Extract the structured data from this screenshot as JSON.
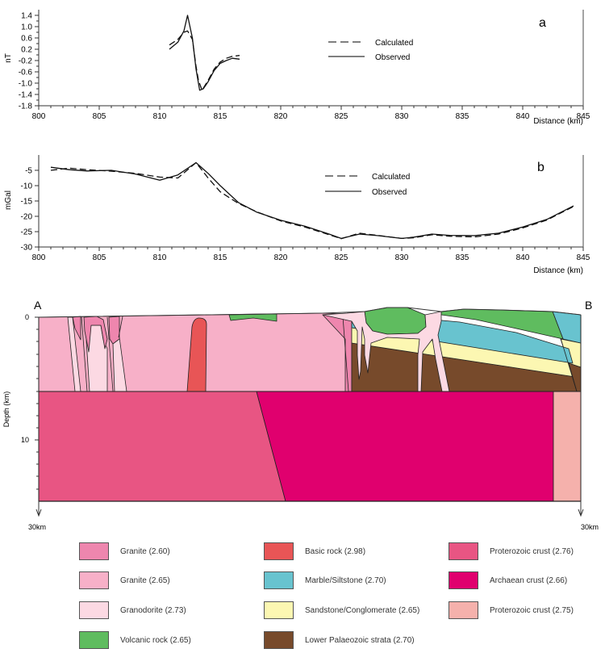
{
  "chart_data": [
    {
      "id": "a",
      "type": "line",
      "panel_label": "a",
      "xlabel": "Distance (km)",
      "ylabel": "nT",
      "xlim": [
        800,
        845
      ],
      "ylim": [
        -1.8,
        1.6
      ],
      "xticks": [
        800,
        805,
        810,
        815,
        820,
        825,
        830,
        835,
        840,
        845
      ],
      "yticks": [
        1.4,
        1.0,
        0.6,
        0.2,
        -0.2,
        -0.6,
        -1.0,
        -1.4,
        -1.8
      ],
      "ytick_labels": [
        "1.4",
        "1.0",
        "0.6",
        "0.2",
        "-0.2",
        "-0.6",
        "-1.0",
        "-1.4",
        "-1.8"
      ],
      "legend_position": "center-right",
      "series": [
        {
          "name": "Calculated",
          "style": "dashed",
          "x": [
            810.8,
            811.5,
            812.0,
            812.3,
            812.7,
            813.0,
            813.2,
            813.5,
            814.0,
            814.5,
            815.0,
            815.5,
            816.0,
            816.6
          ],
          "y": [
            0.35,
            0.55,
            0.8,
            0.85,
            0.55,
            -0.4,
            -0.9,
            -1.25,
            -0.9,
            -0.5,
            -0.25,
            -0.12,
            -0.05,
            -0.02
          ]
        },
        {
          "name": "Observed",
          "style": "solid",
          "x": [
            810.8,
            811.5,
            812.0,
            812.3,
            812.7,
            813.0,
            813.3,
            813.6,
            814.0,
            814.5,
            815.0,
            815.5,
            816.0,
            816.6
          ],
          "y": [
            0.2,
            0.45,
            0.85,
            1.4,
            0.6,
            -0.5,
            -1.25,
            -1.2,
            -0.95,
            -0.55,
            -0.3,
            -0.2,
            -0.12,
            -0.15
          ]
        }
      ]
    },
    {
      "id": "b",
      "type": "line",
      "panel_label": "b",
      "xlabel": "Distance (km)",
      "ylabel": "mGal",
      "xlim": [
        800,
        845
      ],
      "ylim": [
        -30,
        0
      ],
      "xticks": [
        800,
        805,
        810,
        815,
        820,
        825,
        830,
        835,
        840,
        845
      ],
      "yticks": [
        -5,
        -10,
        -15,
        -20,
        -25,
        -30
      ],
      "ytick_labels": [
        "-5",
        "-10",
        "-15",
        "-20",
        "-25",
        "-30"
      ],
      "legend_position": "top-right",
      "series": [
        {
          "name": "Calculated",
          "style": "dashed",
          "x": [
            801,
            802.5,
            804,
            806,
            808,
            810,
            811.5,
            813,
            814,
            815,
            816.5,
            818,
            820,
            822,
            824,
            825,
            826.5,
            828,
            830,
            831,
            832.5,
            834,
            836,
            838,
            840,
            842,
            844.2
          ],
          "y": [
            -5.0,
            -4.3,
            -4.8,
            -5.3,
            -6.0,
            -7.2,
            -7.5,
            -2.5,
            -7.5,
            -12.0,
            -15.8,
            -18.5,
            -21.5,
            -23.5,
            -26.0,
            -27.3,
            -25.5,
            -26.2,
            -27.2,
            -27.0,
            -26.0,
            -26.5,
            -26.7,
            -25.8,
            -23.8,
            -21.2,
            -16.8
          ]
        },
        {
          "name": "Observed",
          "style": "solid",
          "x": [
            801,
            802.5,
            804,
            806,
            808,
            810,
            811.5,
            813,
            814,
            815,
            816.5,
            818,
            820,
            822,
            824,
            825,
            826.5,
            828,
            830,
            831,
            832.5,
            834,
            836,
            838,
            840,
            842,
            844.2
          ],
          "y": [
            -4.0,
            -4.8,
            -5.2,
            -5.0,
            -6.2,
            -8.2,
            -6.5,
            -2.5,
            -6.0,
            -10.0,
            -15.5,
            -18.6,
            -21.3,
            -23.2,
            -25.8,
            -27.2,
            -25.8,
            -26.3,
            -27.2,
            -26.8,
            -25.8,
            -26.2,
            -26.3,
            -25.5,
            -23.5,
            -21.0,
            -16.6
          ]
        }
      ]
    }
  ],
  "cross_section": {
    "left_label": "A",
    "right_label": "B",
    "ylabel": "Depth (km)",
    "yticks": [
      0,
      10
    ],
    "ytick_labels": [
      "0",
      "10"
    ],
    "bottom_label_left": "30km",
    "bottom_label_right": "30km"
  },
  "legend": {
    "items": [
      {
        "label": "Granite (2.60)",
        "color": "#ee86ae"
      },
      {
        "label": "Granite (2.65)",
        "color": "#f7b0c8"
      },
      {
        "label": "Granodorite (2.73)",
        "color": "#fcd9e3"
      },
      {
        "label": "Volcanic rock (2.65)",
        "color": "#5fbc5f"
      },
      {
        "label": "Basic rock (2.98)",
        "color": "#e85556"
      },
      {
        "label": "Marble/Siltstone (2.70)",
        "color": "#68c3cf"
      },
      {
        "label": "Sandstone/Conglomerate (2.65)",
        "color": "#fcf7b2"
      },
      {
        "label": "Lower Palaeozoic strata (2.70)",
        "color": "#774a2b"
      },
      {
        "label": "Proterozoic crust (2.76)",
        "color": "#e85583"
      },
      {
        "label": "Archaean crust (2.66)",
        "color": "#e0006e"
      },
      {
        "label": "Proterozoic crust (2.75)",
        "color": "#f5b1ac"
      }
    ]
  }
}
